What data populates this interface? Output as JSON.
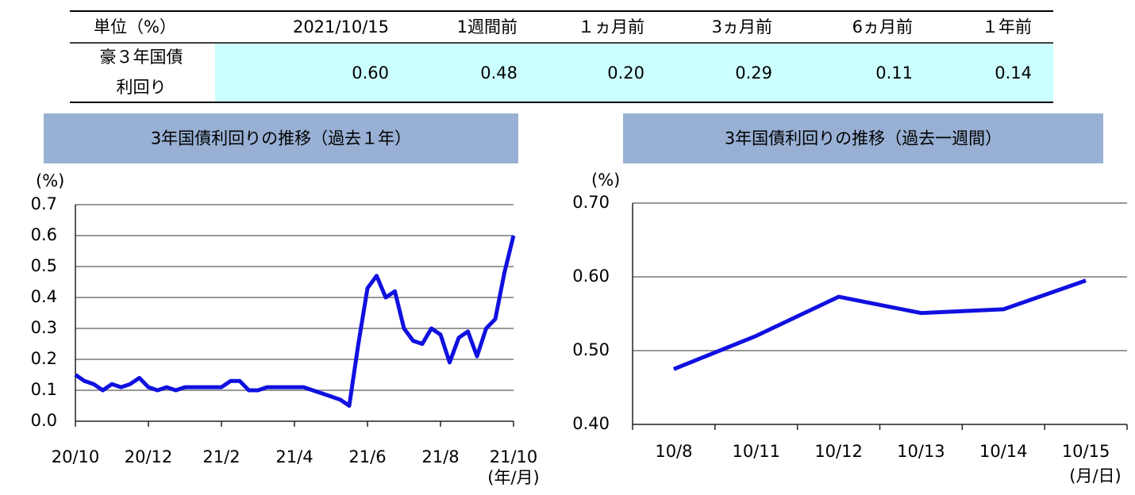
{
  "table": {
    "header": [
      "単位（%）",
      "2021/10/15",
      "1週間前",
      "１ヵ月前",
      "3ヵ月前",
      "6ヵ月前",
      "１年前"
    ],
    "rows": [
      {
        "label": [
          "豪３年国債",
          "利回り"
        ],
        "values": [
          "0.60",
          "0.48",
          "0.20",
          "0.29",
          "0.11",
          "0.14"
        ]
      }
    ]
  },
  "chart_data": [
    {
      "type": "line",
      "title": "3年国債利回りの推移（過去１年）",
      "y_unit": "(%)",
      "x_unit": "(年/月)",
      "categories": [
        "20/10",
        null,
        null,
        null,
        null,
        null,
        null,
        null,
        "20/12",
        null,
        null,
        null,
        null,
        null,
        null,
        null,
        "21/2",
        null,
        null,
        null,
        null,
        null,
        null,
        null,
        "21/4",
        null,
        null,
        null,
        null,
        null,
        null,
        null,
        "21/6",
        null,
        null,
        null,
        null,
        null,
        null,
        null,
        "21/8",
        null,
        null,
        null,
        null,
        null,
        null,
        null,
        "21/10"
      ],
      "series": [
        {
          "name": "豪３年国債利回り",
          "color": "#1010e0",
          "values": [
            0.15,
            0.13,
            0.12,
            0.1,
            0.12,
            0.11,
            0.12,
            0.14,
            0.11,
            0.1,
            0.11,
            0.1,
            0.11,
            0.11,
            0.11,
            0.11,
            0.11,
            0.13,
            0.13,
            0.1,
            0.1,
            0.11,
            0.11,
            0.11,
            0.11,
            0.11,
            0.1,
            0.09,
            0.08,
            0.07,
            0.05,
            0.25,
            0.43,
            0.47,
            0.4,
            0.42,
            0.3,
            0.26,
            0.25,
            0.3,
            0.28,
            0.19,
            0.27,
            0.29,
            0.21,
            0.3,
            0.33,
            0.48,
            0.6
          ]
        }
      ],
      "ylim": [
        0,
        0.7
      ],
      "yticks": [
        {
          "value": 0,
          "label": "0.0"
        },
        0.1,
        0.2,
        0.3,
        0.4,
        0.5,
        0.6,
        0.7
      ],
      "grid": true
    },
    {
      "type": "line",
      "title": "3年国債利回りの推移（過去一週間）",
      "y_unit": "(%)",
      "x_unit": "(月/日)",
      "categories": [
        "10/8",
        "10/11",
        "10/12",
        "10/13",
        "10/14",
        "10/15"
      ],
      "series": [
        {
          "name": "豪３年国債利回り",
          "color": "#1010e0",
          "values": [
            0.475,
            0.52,
            0.573,
            0.551,
            0.556,
            0.595
          ]
        }
      ],
      "ylim": [
        0.4,
        0.7
      ],
      "yticks": [
        {
          "value": 0.4,
          "label": "0.40"
        },
        {
          "value": 0.5,
          "label": "0.50"
        },
        {
          "value": 0.6,
          "label": "0.60"
        },
        {
          "value": 0.7,
          "label": "0.70"
        }
      ],
      "grid": true
    }
  ]
}
